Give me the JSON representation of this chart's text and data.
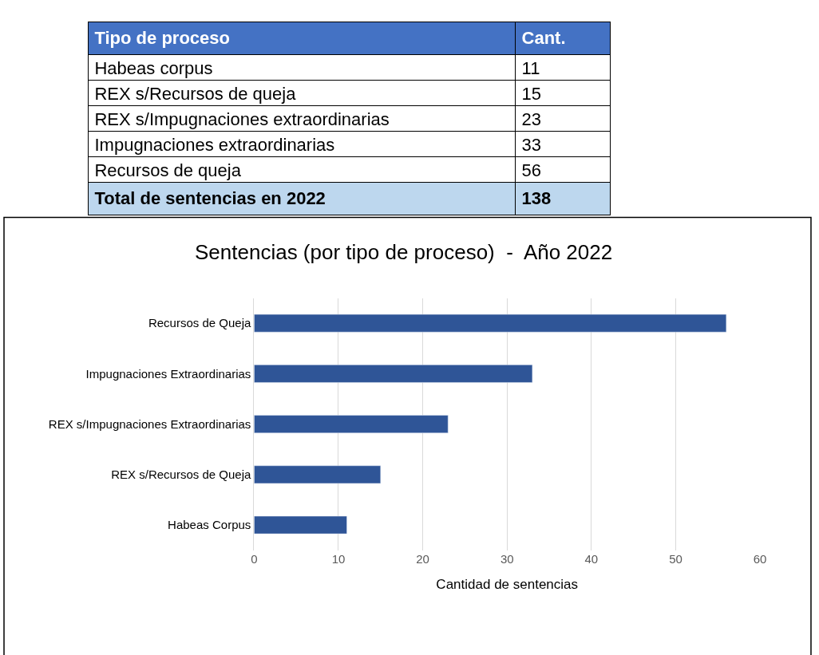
{
  "chart_data": [
    {
      "type": "other",
      "xlabel": "Tipo de proceso",
      "ylabel": "Cant.",
      "categories": [
        "Habeas corpus",
        "REX s/Recursos de queja",
        "REX s/Impugnaciones extraordinarias",
        "Impugnaciones extraordinarias",
        "Recursos de queja",
        "Total de sentencias en 2022"
      ],
      "values": [
        11,
        15,
        23,
        33,
        56,
        138
      ],
      "data_labels": true
    },
    {
      "type": "bar",
      "orientation": "horizontal",
      "title": "Sentencias (por tipo de proceso)  -  Año 2022",
      "xlabel": "Cantidad de sentencias",
      "categories": [
        "Recursos de Queja",
        "Impugnaciones Extraordinarias",
        "REX s/Impugnaciones Extraordinarias",
        "REX s/Recursos de Queja",
        "Habeas Corpus"
      ],
      "values": [
        56,
        33,
        23,
        15,
        11
      ],
      "color": "#2f5597",
      "xlim": [
        0,
        60
      ],
      "xticks": [
        0,
        10,
        20,
        30,
        40,
        50,
        60
      ],
      "grid": "x"
    }
  ]
}
